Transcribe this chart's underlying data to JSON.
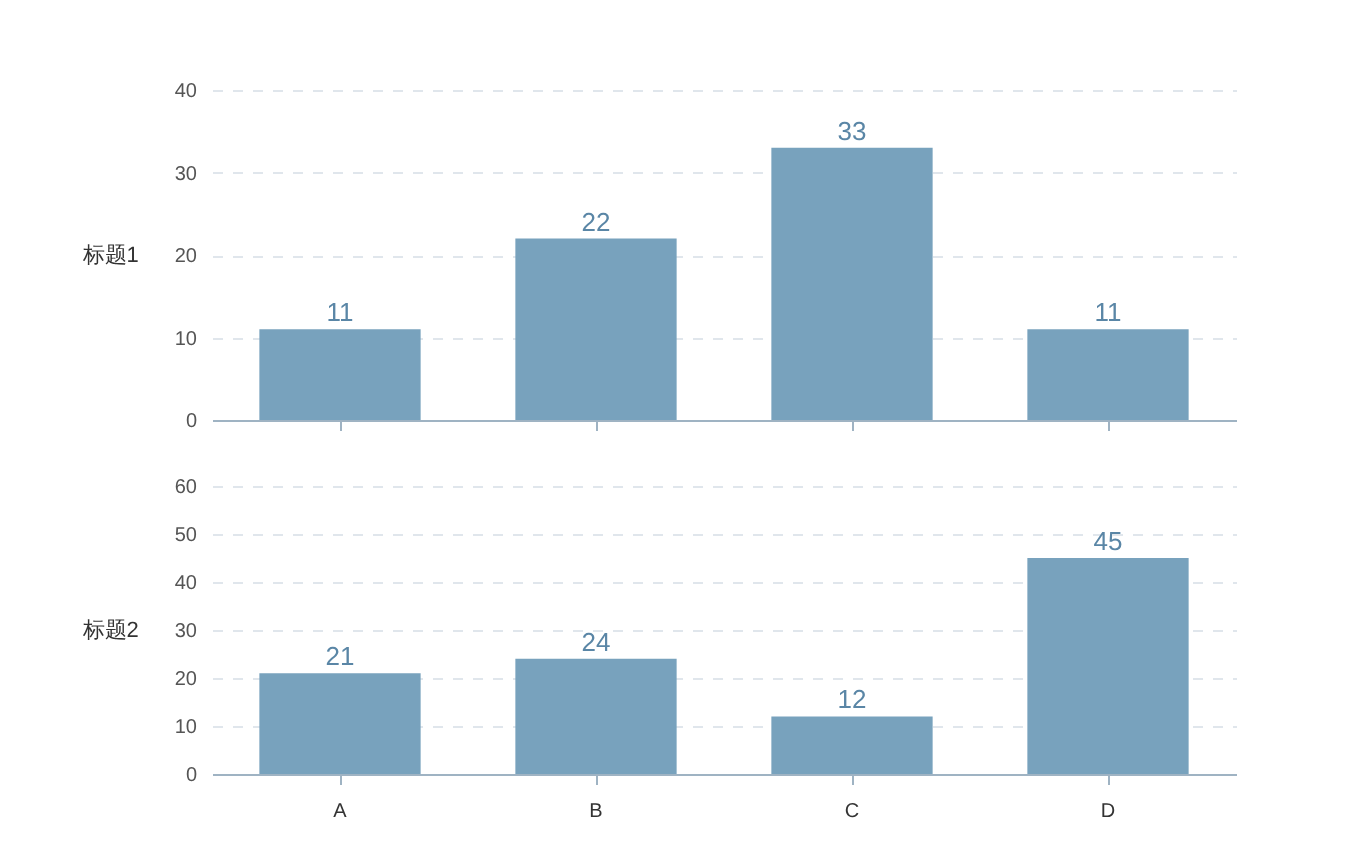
{
  "chart_data": [
    {
      "type": "bar",
      "ylabel": "标题1",
      "categories": [
        null,
        null,
        null,
        null
      ],
      "values": [
        11,
        22,
        33,
        11
      ],
      "color": "#78a2bd",
      "ylim": [
        0,
        40
      ],
      "yticks": [
        0,
        10,
        20,
        30,
        40
      ],
      "grid": "y",
      "data_labels": true,
      "tick_labels": "y"
    },
    {
      "type": "bar",
      "ylabel": "标题2",
      "categories": [
        "A",
        "B",
        "C",
        "D"
      ],
      "values": [
        21,
        24,
        12,
        45
      ],
      "color": "#78a2bd",
      "ylim": [
        0,
        60
      ],
      "yticks": [
        0,
        10,
        20,
        30,
        40,
        50,
        60
      ],
      "grid": "y",
      "data_labels": true
    }
  ]
}
